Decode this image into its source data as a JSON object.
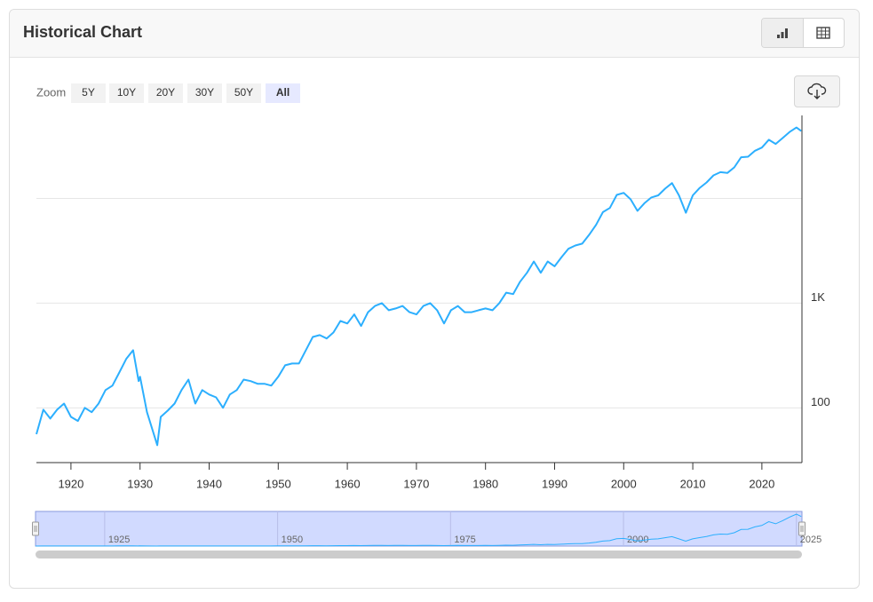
{
  "header": {
    "title": "Historical Chart"
  },
  "zoom": {
    "label": "Zoom",
    "options": [
      "5Y",
      "10Y",
      "20Y",
      "30Y",
      "50Y",
      "All"
    ],
    "selected": 5
  },
  "chart_data": {
    "type": "line",
    "color": "#2caffe",
    "log_y": true,
    "grid": true,
    "x": [
      1915,
      1916,
      1917,
      1918,
      1919,
      1920,
      1921,
      1922,
      1923,
      1924,
      1925,
      1926,
      1927,
      1928,
      1929,
      1929.8,
      1930,
      1931,
      1932.5,
      1933,
      1934,
      1935,
      1936,
      1937,
      1938,
      1939,
      1940,
      1941,
      1942,
      1943,
      1944,
      1945,
      1946,
      1947,
      1948,
      1949,
      1950,
      1951,
      1952,
      1953,
      1954,
      1955,
      1956,
      1957,
      1958,
      1959,
      1960,
      1961,
      1962,
      1963,
      1964,
      1965,
      1966,
      1967,
      1968,
      1969,
      1970,
      1971,
      1972,
      1973,
      1974,
      1975,
      1976,
      1977,
      1978,
      1979,
      1980,
      1981,
      1982,
      1983,
      1984,
      1985,
      1986,
      1987,
      1988,
      1989,
      1990,
      1991,
      1992,
      1993,
      1994,
      1995,
      1996,
      1997,
      1998,
      1999,
      2000,
      2001,
      2002,
      2003,
      2004,
      2005,
      2006,
      2007,
      2008,
      2009,
      2010,
      2011,
      2012,
      2013,
      2014,
      2015,
      2016,
      2017,
      2018,
      2019,
      2020,
      2021,
      2022,
      2023,
      2024,
      2025,
      2025.7
    ],
    "values": [
      56,
      96,
      79,
      96,
      110,
      82,
      75,
      100,
      91,
      110,
      148,
      163,
      218,
      293,
      355,
      180,
      198,
      91,
      44,
      82,
      94,
      110,
      148,
      186,
      110,
      148,
      134,
      126,
      100,
      134,
      148,
      186,
      180,
      170,
      170,
      163,
      198,
      255,
      265,
      265,
      355,
      475,
      495,
      460,
      525,
      675,
      640,
      780,
      605,
      820,
      940,
      1000,
      855,
      890,
      940,
      820,
      780,
      940,
      1000,
      855,
      640,
      855,
      940,
      820,
      820,
      855,
      890,
      855,
      1000,
      1260,
      1220,
      1600,
      1950,
      2500,
      1950,
      2500,
      2250,
      2750,
      3300,
      3550,
      3700,
      4500,
      5600,
      7400,
      8100,
      10800,
      11300,
      9800,
      7600,
      9000,
      10200,
      10700,
      12400,
      14000,
      10700,
      7300,
      10700,
      12600,
      14200,
      16600,
      17800,
      17500,
      19800,
      24700,
      25000,
      28500,
      30600,
      36300,
      33100,
      37700,
      43000,
      47500,
      44000
    ],
    "xlim": [
      1915,
      2025.8
    ],
    "ylim": [
      30,
      62000
    ],
    "xticks": [
      1920,
      1930,
      1940,
      1950,
      1960,
      1970,
      1980,
      1990,
      2000,
      2010,
      2020
    ],
    "yticks": [
      100,
      {
        "value": 1000,
        "label": "1K"
      },
      {
        "value": 10000,
        "label": null
      }
    ],
    "navigator_xticks": [
      1925,
      1950,
      1975,
      2000,
      2025
    ]
  }
}
